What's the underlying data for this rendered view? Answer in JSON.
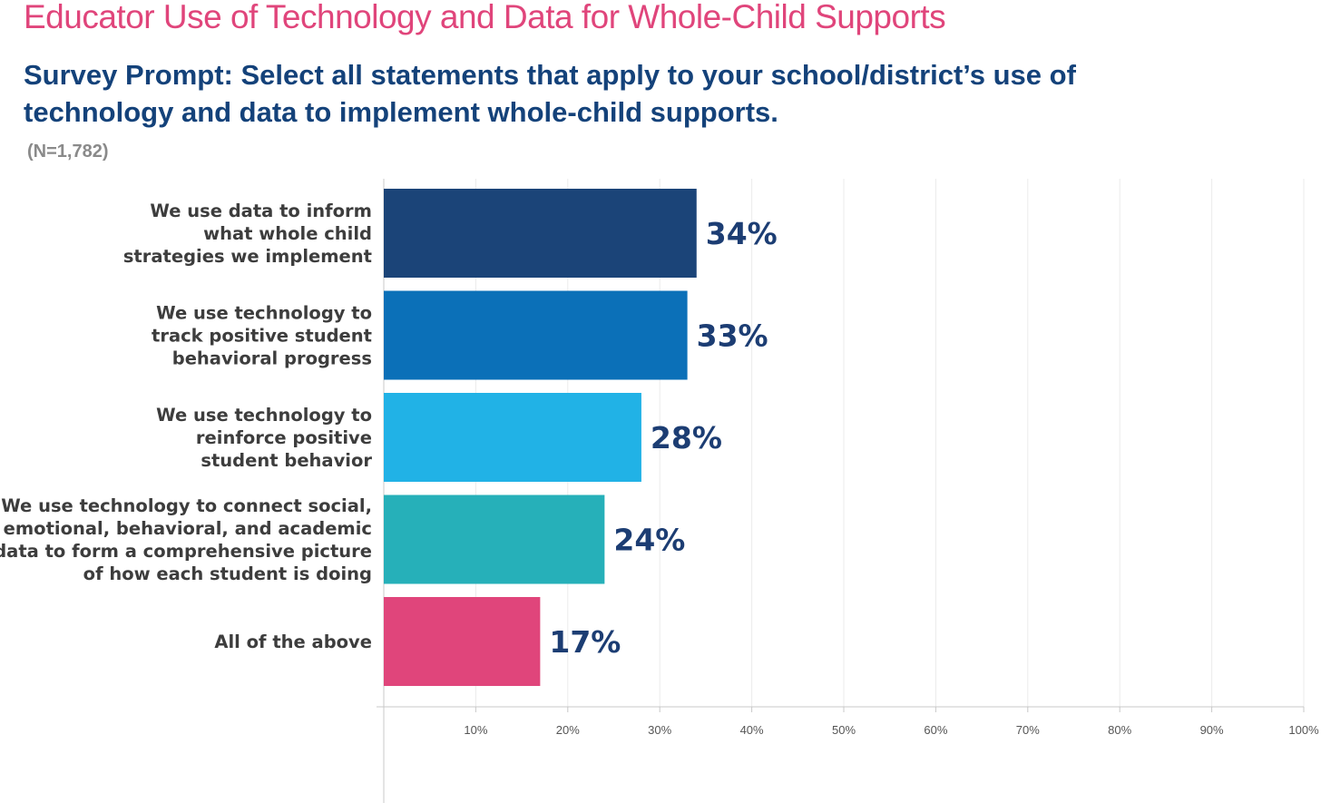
{
  "header": {
    "title": "Educator Use of Technology and Data for Whole-Child Supports",
    "subtitle": "Survey Prompt: Select all statements that apply to your school/district’s use of technology and data to implement whole-child supports.",
    "sample_size": "(N=1,782)"
  },
  "chart_data": {
    "type": "bar",
    "orientation": "horizontal",
    "categories": [
      "We use data to inform what whole child strategies we implement",
      "We use technology to track positive student behavioral progress",
      "We use technology to reinforce positive student behavior",
      "We use technology to connect social, emotional, behavioral, and academic data to form a comprehensive picture of how each student is doing",
      "All of the above"
    ],
    "category_label_lines": [
      [
        "We use data to inform",
        "what whole child",
        "strategies we implement"
      ],
      [
        "We use technology to",
        "track positive student",
        "behavioral progress"
      ],
      [
        "We use technology to",
        "reinforce positive",
        "student behavior"
      ],
      [
        "We use technology to connect social,",
        "emotional, behavioral, and academic",
        "data to form a comprehensive picture",
        "of how each student is doing"
      ],
      [
        "All of the above"
      ]
    ],
    "values": [
      34,
      33,
      28,
      24,
      17
    ],
    "value_labels": [
      "34%",
      "33%",
      "28%",
      "24%",
      "17%"
    ],
    "bar_colors": [
      "#1b4478",
      "#0b70b8",
      "#21b2e6",
      "#26b0b9",
      "#e0457b"
    ],
    "xlim": [
      0,
      100
    ],
    "x_ticks": [
      10,
      20,
      30,
      40,
      50,
      60,
      70,
      80,
      90,
      100
    ],
    "x_tick_labels": [
      "10%",
      "20%",
      "30%",
      "40%",
      "50%",
      "60%",
      "70%",
      "80%",
      "90%",
      "100%"
    ],
    "grid": true,
    "legend": false,
    "colors": {
      "title": "#e0457b",
      "subtitle": "#14427a",
      "value_label": "#1c3d73",
      "category_label": "#3d3d3d"
    }
  }
}
